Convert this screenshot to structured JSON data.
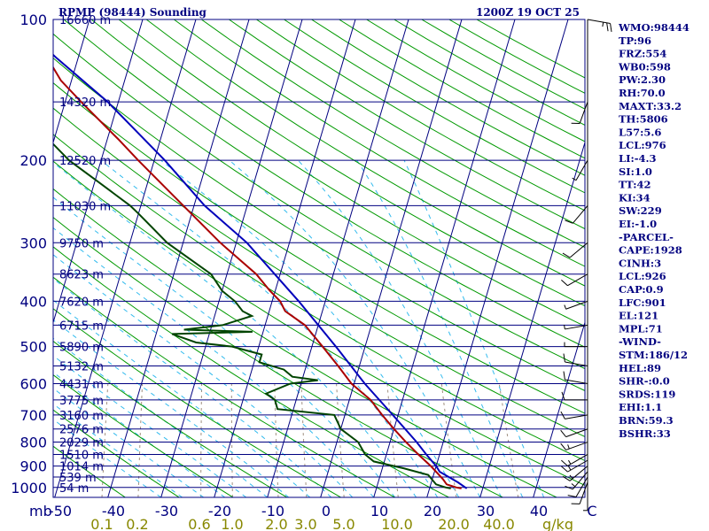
{
  "chart_data": {
    "type": "skew-t",
    "title_left": "RPMP (98444) Sounding",
    "title_right": "1200Z 19 OCT 25",
    "colors": {
      "frame": "#000080",
      "isobar": "#000080",
      "isotherm": "#000080",
      "dry_adiabat": "#009900",
      "moist_adiabat": "#33bbee",
      "mixing_ratio": "#a09080",
      "temperature": "#aa0000",
      "dewpoint": "#004400",
      "parcel": "#0000bb",
      "mixing_label": "#888800",
      "text": "#000080",
      "wind": "#000000"
    },
    "pressure_axis": {
      "unit_label": "mb",
      "ticks": [
        100,
        200,
        300,
        400,
        500,
        600,
        700,
        800,
        900,
        1000
      ],
      "range": [
        100,
        1050
      ]
    },
    "temperature_axis": {
      "ticks": [
        "-50",
        "-40",
        "-30",
        "-20",
        "-10",
        "0",
        "10",
        "20",
        "30",
        "40",
        "C"
      ]
    },
    "mixing_ratio_axis": {
      "unit_label": "g/kg",
      "ticks": [
        "0.1",
        "0.2",
        "0.6",
        "1.0",
        "2.0",
        "3.0",
        "5.0",
        "10.0",
        "20.0",
        "40.0"
      ]
    },
    "height_labels": [
      {
        "p": 100,
        "label": "16660 m"
      },
      {
        "p": 150,
        "label": "14320 m"
      },
      {
        "p": 200,
        "label": "12520 m"
      },
      {
        "p": 250,
        "label": "11030 m"
      },
      {
        "p": 300,
        "label": "9750 m"
      },
      {
        "p": 350,
        "label": "8623 m"
      },
      {
        "p": 400,
        "label": "7620 m"
      },
      {
        "p": 450,
        "label": "6715 m"
      },
      {
        "p": 500,
        "label": "5890 m"
      },
      {
        "p": 550,
        "label": "5132 m"
      },
      {
        "p": 600,
        "label": "4431 m"
      },
      {
        "p": 650,
        "label": "3775 m"
      },
      {
        "p": 700,
        "label": "3160 m"
      },
      {
        "p": 750,
        "label": "2576 m"
      },
      {
        "p": 800,
        "label": "2029 m"
      },
      {
        "p": 850,
        "label": "1510 m"
      },
      {
        "p": 900,
        "label": "1014 m"
      },
      {
        "p": 950,
        "label": "539 m"
      },
      {
        "p": 1000,
        "label": "54 m"
      }
    ],
    "temperature_profile": [
      {
        "p": 1005,
        "t": 26
      },
      {
        "p": 1000,
        "t": 25
      },
      {
        "p": 985,
        "t": 23
      },
      {
        "p": 960,
        "t": 22
      },
      {
        "p": 900,
        "t": 19
      },
      {
        "p": 850,
        "t": 16
      },
      {
        "p": 800,
        "t": 13
      },
      {
        "p": 750,
        "t": 10
      },
      {
        "p": 700,
        "t": 7
      },
      {
        "p": 650,
        "t": 4
      },
      {
        "p": 600,
        "t": -0.5
      },
      {
        "p": 550,
        "t": -4
      },
      {
        "p": 500,
        "t": -8
      },
      {
        "p": 450,
        "t": -12.5
      },
      {
        "p": 420,
        "t": -17
      },
      {
        "p": 400,
        "t": -18.5
      },
      {
        "p": 380,
        "t": -21
      },
      {
        "p": 350,
        "t": -24.5
      },
      {
        "p": 300,
        "t": -33
      },
      {
        "p": 250,
        "t": -42
      },
      {
        "p": 200,
        "t": -53
      },
      {
        "p": 180,
        "t": -58
      },
      {
        "p": 150,
        "t": -67
      },
      {
        "p": 135,
        "t": -72
      },
      {
        "p": 120,
        "t": -76
      },
      {
        "p": 100,
        "t": -84
      }
    ],
    "dewpoint_profile": [
      {
        "p": 1005,
        "t": 24
      },
      {
        "p": 1000,
        "t": 23
      },
      {
        "p": 985,
        "t": 21
      },
      {
        "p": 940,
        "t": 19
      },
      {
        "p": 910,
        "t": 14
      },
      {
        "p": 880,
        "t": 8
      },
      {
        "p": 850,
        "t": 6
      },
      {
        "p": 800,
        "t": 4
      },
      {
        "p": 750,
        "t": 0
      },
      {
        "p": 700,
        "t": -2
      },
      {
        "p": 680,
        "t": -13
      },
      {
        "p": 650,
        "t": -14
      },
      {
        "p": 630,
        "t": -16
      },
      {
        "p": 600,
        "t": -12
      },
      {
        "p": 590,
        "t": -7
      },
      {
        "p": 580,
        "t": -12
      },
      {
        "p": 560,
        "t": -14
      },
      {
        "p": 540,
        "t": -19
      },
      {
        "p": 520,
        "t": -19
      },
      {
        "p": 500,
        "t": -25
      },
      {
        "p": 490,
        "t": -32
      },
      {
        "p": 470,
        "t": -37
      },
      {
        "p": 465,
        "t": -22
      },
      {
        "p": 460,
        "t": -35
      },
      {
        "p": 450,
        "t": -28
      },
      {
        "p": 430,
        "t": -23
      },
      {
        "p": 420,
        "t": -25
      },
      {
        "p": 400,
        "t": -27
      },
      {
        "p": 380,
        "t": -30
      },
      {
        "p": 350,
        "t": -33
      },
      {
        "p": 300,
        "t": -43
      },
      {
        "p": 260,
        "t": -50
      },
      {
        "p": 250,
        "t": -52
      },
      {
        "p": 220,
        "t": -60
      },
      {
        "p": 200,
        "t": -66
      },
      {
        "p": 150,
        "t": -80
      },
      {
        "p": 130,
        "t": -89
      },
      {
        "p": 115,
        "t": -92
      },
      {
        "p": 100,
        "t": -95
      }
    ],
    "parcel_profile": [
      {
        "p": 1005,
        "t": 27
      },
      {
        "p": 975,
        "t": 25
      },
      {
        "p": 926,
        "t": 21
      },
      {
        "p": 900,
        "t": 20
      },
      {
        "p": 850,
        "t": 17.5
      },
      {
        "p": 800,
        "t": 15
      },
      {
        "p": 700,
        "t": 9
      },
      {
        "p": 600,
        "t": 2
      },
      {
        "p": 500,
        "t": -5.5
      },
      {
        "p": 400,
        "t": -15
      },
      {
        "p": 300,
        "t": -28
      },
      {
        "p": 250,
        "t": -38
      },
      {
        "p": 200,
        "t": -48
      },
      {
        "p": 150,
        "t": -62
      },
      {
        "p": 121,
        "t": -74
      },
      {
        "p": 110,
        "t": -79
      }
    ],
    "wind_profile": [
      {
        "p": 1000,
        "dir": 180,
        "spd": 5
      },
      {
        "p": 975,
        "dir": 200,
        "spd": 10
      },
      {
        "p": 950,
        "dir": 210,
        "spd": 10
      },
      {
        "p": 925,
        "dir": 220,
        "spd": 15
      },
      {
        "p": 900,
        "dir": 230,
        "spd": 15
      },
      {
        "p": 875,
        "dir": 240,
        "spd": 15
      },
      {
        "p": 850,
        "dir": 240,
        "spd": 15
      },
      {
        "p": 800,
        "dir": 250,
        "spd": 15
      },
      {
        "p": 750,
        "dir": 250,
        "spd": 10
      },
      {
        "p": 700,
        "dir": 260,
        "spd": 10
      },
      {
        "p": 650,
        "dir": 270,
        "spd": 10
      },
      {
        "p": 600,
        "dir": 280,
        "spd": 10
      },
      {
        "p": 550,
        "dir": 280,
        "spd": 10
      },
      {
        "p": 500,
        "dir": 270,
        "spd": 5
      },
      {
        "p": 450,
        "dir": 260,
        "spd": 5
      },
      {
        "p": 400,
        "dir": 250,
        "spd": 5
      },
      {
        "p": 350,
        "dir": 240,
        "spd": 10
      },
      {
        "p": 300,
        "dir": 230,
        "spd": 10
      },
      {
        "p": 250,
        "dir": 220,
        "spd": 10
      },
      {
        "p": 200,
        "dir": 210,
        "spd": 5
      },
      {
        "p": 150,
        "dir": 200,
        "spd": 10
      },
      {
        "p": 100,
        "dir": 100,
        "spd": 25
      }
    ],
    "indices": [
      "WMO:98444",
      "TP:96",
      "FRZ:554",
      "WB0:598",
      "PW:2.30",
      "RH:70.0",
      "MAXT:33.2",
      "TH:5806",
      "L57:5.6",
      "LCL:976",
      "LI:-4.3",
      "SI:1.0",
      "TT:42",
      "KI:34",
      "SW:229",
      "EI:-1.0",
      "-PARCEL-",
      "CAPE:1928",
      "CINH:3",
      "LCL:926",
      "CAP:0.9",
      "LFC:901",
      "EL:121",
      "MPL:71",
      "-WIND-",
      "STM:186/12",
      "HEL:89",
      "SHR-:0.0",
      "SRDS:119",
      "EHI:1.1",
      "BRN:59.3",
      "BSHR:33"
    ]
  }
}
